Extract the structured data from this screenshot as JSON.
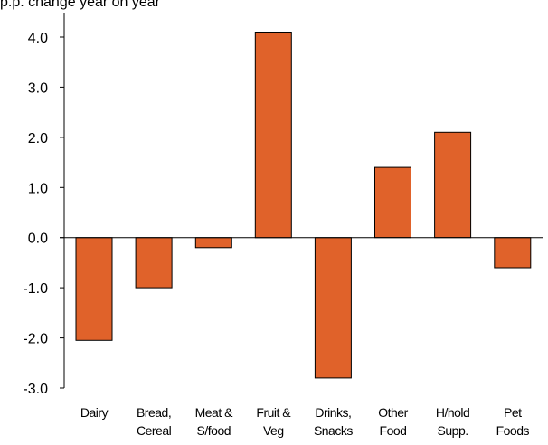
{
  "chart_data": {
    "type": "bar",
    "title": "p.p. change year on year",
    "xlabel": "",
    "ylabel": "",
    "categories": [
      [
        "Dairy"
      ],
      [
        "Bread,",
        "Cereal"
      ],
      [
        "Meat &",
        "S/food"
      ],
      [
        "Fruit &",
        "Veg"
      ],
      [
        "Drinks,",
        "Snacks"
      ],
      [
        "Other",
        "Food"
      ],
      [
        "H/hold",
        "Supp."
      ],
      [
        "Pet",
        "Foods"
      ]
    ],
    "values": [
      -2.05,
      -1.0,
      -0.2,
      4.1,
      -2.8,
      1.4,
      2.1,
      -0.6
    ],
    "ylim": [
      -3.0,
      4.0
    ],
    "yticks": [
      "4.0",
      "3.0",
      "2.0",
      "1.0",
      "0.0",
      "-1.0",
      "-2.0",
      "-3.0"
    ],
    "ytick_values": [
      4.0,
      3.0,
      2.0,
      1.0,
      0.0,
      -1.0,
      -2.0,
      -3.0
    ],
    "grid": false,
    "legend": "none",
    "colors": {
      "bar_fill": "#E0622A",
      "bar_stroke": "#000000",
      "axis": "#000000",
      "text": "#000000"
    }
  }
}
